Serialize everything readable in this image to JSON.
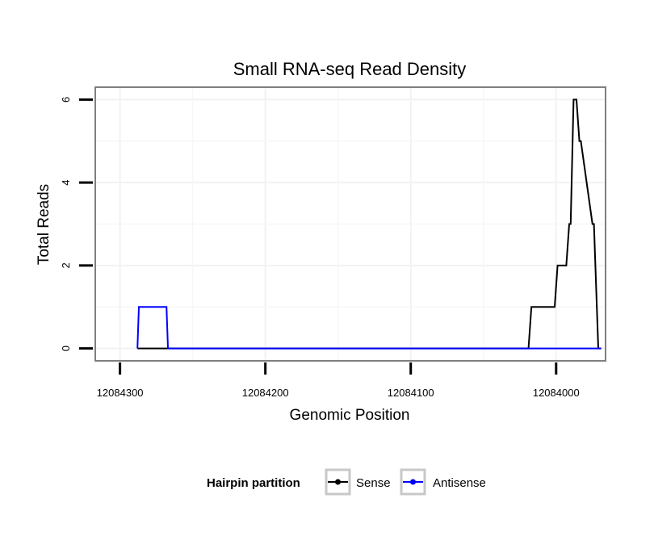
{
  "chart_data": {
    "type": "line",
    "title": "Small RNA-seq Read Density",
    "xlabel": "Genomic Position",
    "ylabel": "Total Reads",
    "xlim": [
      12084317,
      12083966
    ],
    "ylim": [
      -0.3,
      6.3
    ],
    "x_reversed": true,
    "grid": true,
    "x_ticks": [
      {
        "value": 12084300,
        "label": "12084300"
      },
      {
        "value": 12084200,
        "label": "12084200"
      },
      {
        "value": 12084100,
        "label": "12084100"
      },
      {
        "value": 12084000,
        "label": "12084000"
      }
    ],
    "y_ticks": [
      {
        "value": 0,
        "label": "0"
      },
      {
        "value": 2,
        "label": "2"
      },
      {
        "value": 4,
        "label": "4"
      },
      {
        "value": 6,
        "label": "6"
      }
    ],
    "legend": {
      "title": "Hairpin partition",
      "position": "bottom"
    },
    "series": [
      {
        "name": "Sense",
        "color": "#000000",
        "x": [
          12084288,
          12084019,
          12084017,
          12084001,
          12083999,
          12083993,
          12083991,
          12083990,
          12083988,
          12083986,
          12083984,
          12083983,
          12083975,
          12083974,
          12083971,
          12083969
        ],
        "y": [
          0,
          0,
          1,
          1,
          2,
          2,
          3,
          3,
          6,
          6,
          5,
          5,
          3,
          3,
          0,
          0
        ]
      },
      {
        "name": "Antisense",
        "color": "#0000ff",
        "x": [
          12084288,
          12084287,
          12084268,
          12084267,
          12083969
        ],
        "y": [
          0,
          1,
          1,
          0,
          0
        ]
      }
    ]
  }
}
